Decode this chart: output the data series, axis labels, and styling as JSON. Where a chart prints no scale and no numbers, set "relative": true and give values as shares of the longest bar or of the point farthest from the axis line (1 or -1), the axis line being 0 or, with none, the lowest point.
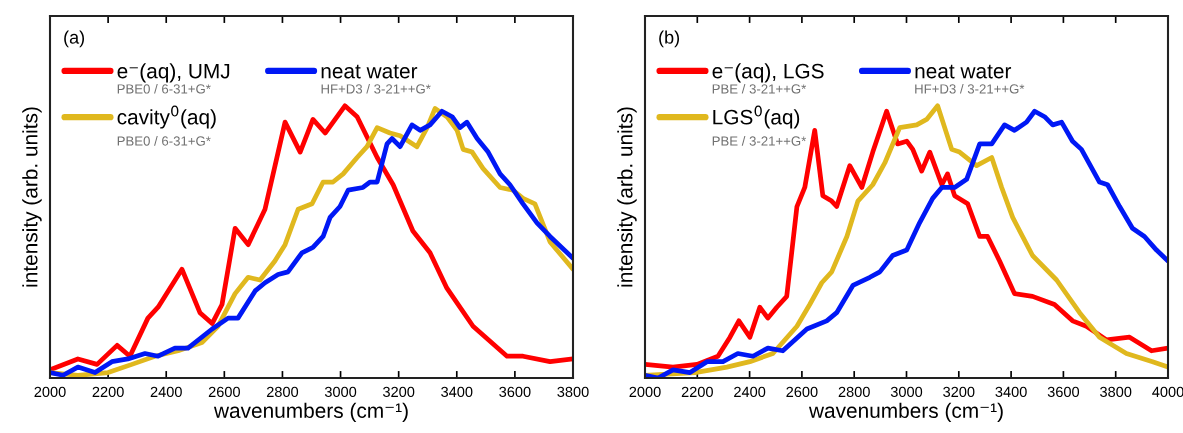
{
  "chart_data": [
    {
      "type": "line",
      "relative": true,
      "xlabel": "wavenumbers (cm⁻¹)",
      "ylabel": "intensity (arb. units)",
      "xlim": [
        2000,
        3800
      ],
      "xticks": [
        2000,
        2200,
        2400,
        2600,
        2800,
        3000,
        3200,
        3400,
        3600,
        3800
      ],
      "legend": "top left",
      "grid": false,
      "annotations": [
        "(a)",
        "PBE0 / 6-31+G*",
        "PBE0 / 6-31+G*",
        "HF+D3 / 3-21++G*"
      ],
      "series": [
        {
          "name": "e⁻(aq), UMJ",
          "color": "#ff0000",
          "x": [
            2000,
            2096,
            2162,
            2231,
            2275,
            2337,
            2372,
            2454,
            2516,
            2558,
            2592,
            2637,
            2682,
            2740,
            2809,
            2861,
            2905,
            2947,
            3015,
            3057,
            3126,
            3181,
            3249,
            3308,
            3366,
            3456,
            3573,
            3628,
            3721,
            3800
          ],
          "values": [
            0.03,
            0.07,
            0.05,
            0.12,
            0.08,
            0.22,
            0.26,
            0.4,
            0.24,
            0.2,
            0.27,
            0.55,
            0.49,
            0.62,
            0.94,
            0.83,
            0.95,
            0.9,
            1.0,
            0.96,
            0.81,
            0.71,
            0.54,
            0.46,
            0.33,
            0.19,
            0.08,
            0.08,
            0.06,
            0.07
          ]
        },
        {
          "name": "cavity$^{0}$(aq)",
          "color": "#e0b81e",
          "x": [
            2000,
            2096,
            2200,
            2282,
            2361,
            2441,
            2523,
            2578,
            2637,
            2682,
            2723,
            2774,
            2809,
            2854,
            2902,
            2940,
            2974,
            3009,
            3057,
            3091,
            3126,
            3170,
            3205,
            3263,
            3298,
            3325,
            3366,
            3401,
            3422,
            3453,
            3490,
            3549,
            3594,
            3628,
            3669,
            3721,
            3800
          ],
          "values": [
            0.02,
            0.01,
            0.02,
            0.05,
            0.08,
            0.1,
            0.13,
            0.19,
            0.31,
            0.37,
            0.36,
            0.43,
            0.49,
            0.62,
            0.64,
            0.72,
            0.72,
            0.75,
            0.81,
            0.85,
            0.92,
            0.9,
            0.89,
            0.85,
            0.92,
            0.99,
            0.96,
            0.91,
            0.84,
            0.83,
            0.77,
            0.7,
            0.69,
            0.66,
            0.64,
            0.5,
            0.4
          ]
        },
        {
          "name": "neat water",
          "color": "#0018f5",
          "x": [
            2000,
            2045,
            2096,
            2155,
            2213,
            2268,
            2327,
            2372,
            2430,
            2475,
            2558,
            2613,
            2647,
            2706,
            2740,
            2785,
            2819,
            2867,
            2905,
            2940,
            2964,
            2998,
            3026,
            3077,
            3101,
            3126,
            3160,
            3177,
            3205,
            3246,
            3274,
            3308,
            3349,
            3384,
            3411,
            3435,
            3470,
            3508,
            3549,
            3583,
            3628,
            3676,
            3721,
            3800
          ],
          "values": [
            0.02,
            0.01,
            0.04,
            0.02,
            0.06,
            0.07,
            0.09,
            0.08,
            0.11,
            0.11,
            0.18,
            0.22,
            0.22,
            0.32,
            0.35,
            0.38,
            0.39,
            0.46,
            0.48,
            0.52,
            0.59,
            0.63,
            0.69,
            0.7,
            0.72,
            0.72,
            0.86,
            0.88,
            0.85,
            0.93,
            0.91,
            0.93,
            0.98,
            0.96,
            0.92,
            0.94,
            0.88,
            0.83,
            0.75,
            0.71,
            0.64,
            0.57,
            0.52,
            0.44
          ]
        }
      ]
    },
    {
      "type": "line",
      "relative": true,
      "xlabel": "wavenumbers (cm⁻¹)",
      "ylabel": "intensity (arb. units)",
      "xlim": [
        2000,
        4000
      ],
      "xticks": [
        2000,
        2200,
        2400,
        2600,
        2800,
        3000,
        3200,
        3400,
        3600,
        3800,
        4000
      ],
      "legend": "top left",
      "grid": false,
      "annotations": [
        "(b)",
        "PBE / 3-21++G*",
        "PBE / 3-21++G*",
        "HF+D3 / 3-21++G*"
      ],
      "series": [
        {
          "name": "e⁻(aq), LGS",
          "color": "#ff0000",
          "x": [
            2000,
            2107,
            2199,
            2279,
            2325,
            2359,
            2401,
            2439,
            2470,
            2504,
            2542,
            2581,
            2611,
            2649,
            2680,
            2714,
            2733,
            2783,
            2829,
            2871,
            2924,
            2966,
            3001,
            3024,
            3058,
            3089,
            3135,
            3157,
            3184,
            3234,
            3280,
            3310,
            3356,
            3413,
            3482,
            3566,
            3635,
            3688,
            3765,
            3853,
            3937,
            4000
          ],
          "values": [
            0.05,
            0.04,
            0.05,
            0.08,
            0.15,
            0.21,
            0.15,
            0.26,
            0.22,
            0.26,
            0.3,
            0.63,
            0.7,
            0.91,
            0.67,
            0.65,
            0.63,
            0.78,
            0.7,
            0.83,
            0.98,
            0.86,
            0.87,
            0.84,
            0.76,
            0.83,
            0.71,
            0.75,
            0.67,
            0.64,
            0.52,
            0.52,
            0.43,
            0.31,
            0.3,
            0.27,
            0.21,
            0.19,
            0.14,
            0.15,
            0.1,
            0.11
          ]
        },
        {
          "name": "LGS$^{0}$(aq)",
          "color": "#e0b81e",
          "x": [
            2000,
            2191,
            2313,
            2401,
            2489,
            2581,
            2630,
            2676,
            2714,
            2772,
            2814,
            2871,
            2917,
            2974,
            3039,
            3077,
            3119,
            3173,
            3203,
            3268,
            3326,
            3364,
            3406,
            3482,
            3574,
            3662,
            3738,
            3841,
            3941,
            4000
          ],
          "values": [
            0.01,
            0.02,
            0.04,
            0.06,
            0.09,
            0.19,
            0.27,
            0.35,
            0.39,
            0.52,
            0.65,
            0.71,
            0.79,
            0.92,
            0.93,
            0.95,
            1.0,
            0.84,
            0.83,
            0.78,
            0.81,
            0.7,
            0.59,
            0.45,
            0.36,
            0.24,
            0.15,
            0.09,
            0.06,
            0.04
          ]
        },
        {
          "name": "neat water",
          "color": "#0018f5",
          "x": [
            2000,
            2050,
            2107,
            2172,
            2237,
            2298,
            2355,
            2413,
            2470,
            2527,
            2619,
            2695,
            2733,
            2795,
            2860,
            2898,
            2947,
            3001,
            3050,
            3100,
            3135,
            3184,
            3230,
            3280,
            3326,
            3375,
            3413,
            3459,
            3490,
            3528,
            3559,
            3593,
            3635,
            3669,
            3738,
            3769,
            3815,
            3864,
            3910,
            3956,
            4000
          ],
          "values": [
            0.01,
            0.0,
            0.03,
            0.02,
            0.06,
            0.06,
            0.09,
            0.08,
            0.11,
            0.1,
            0.18,
            0.21,
            0.24,
            0.34,
            0.37,
            0.39,
            0.45,
            0.47,
            0.57,
            0.66,
            0.7,
            0.7,
            0.73,
            0.86,
            0.86,
            0.93,
            0.91,
            0.94,
            0.98,
            0.96,
            0.93,
            0.94,
            0.87,
            0.84,
            0.72,
            0.71,
            0.63,
            0.55,
            0.52,
            0.47,
            0.43
          ]
        }
      ]
    }
  ]
}
